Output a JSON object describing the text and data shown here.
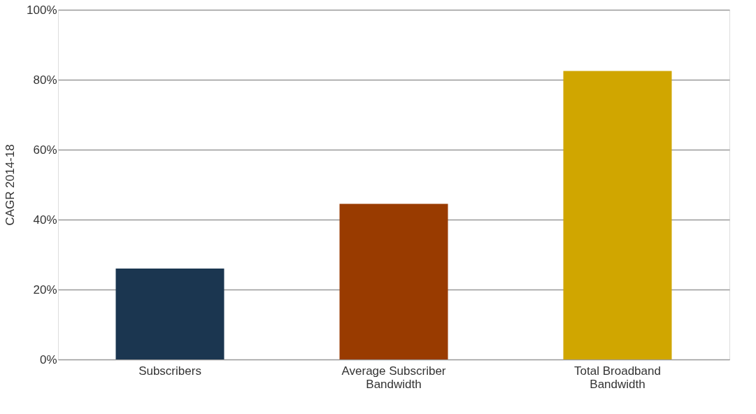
{
  "chart_data": {
    "type": "bar",
    "ylabel": "CAGR 2014-18",
    "categories": [
      "Subscribers",
      "Average Subscriber Bandwidth",
      "Total Broadband Bandwidth"
    ],
    "values": [
      26,
      44.5,
      82.5
    ],
    "colors": [
      "#1b3650",
      "#993b00",
      "#d0a600"
    ],
    "ylim": [
      0,
      100
    ],
    "yticks": [
      {
        "value": 0,
        "label": "0%"
      },
      {
        "value": 20,
        "label": "20%"
      },
      {
        "value": 40,
        "label": "40%"
      },
      {
        "value": 60,
        "label": "60%"
      },
      {
        "value": 80,
        "label": "80%"
      },
      {
        "value": 100,
        "label": "100%"
      }
    ],
    "grid": "y",
    "legend": false
  }
}
